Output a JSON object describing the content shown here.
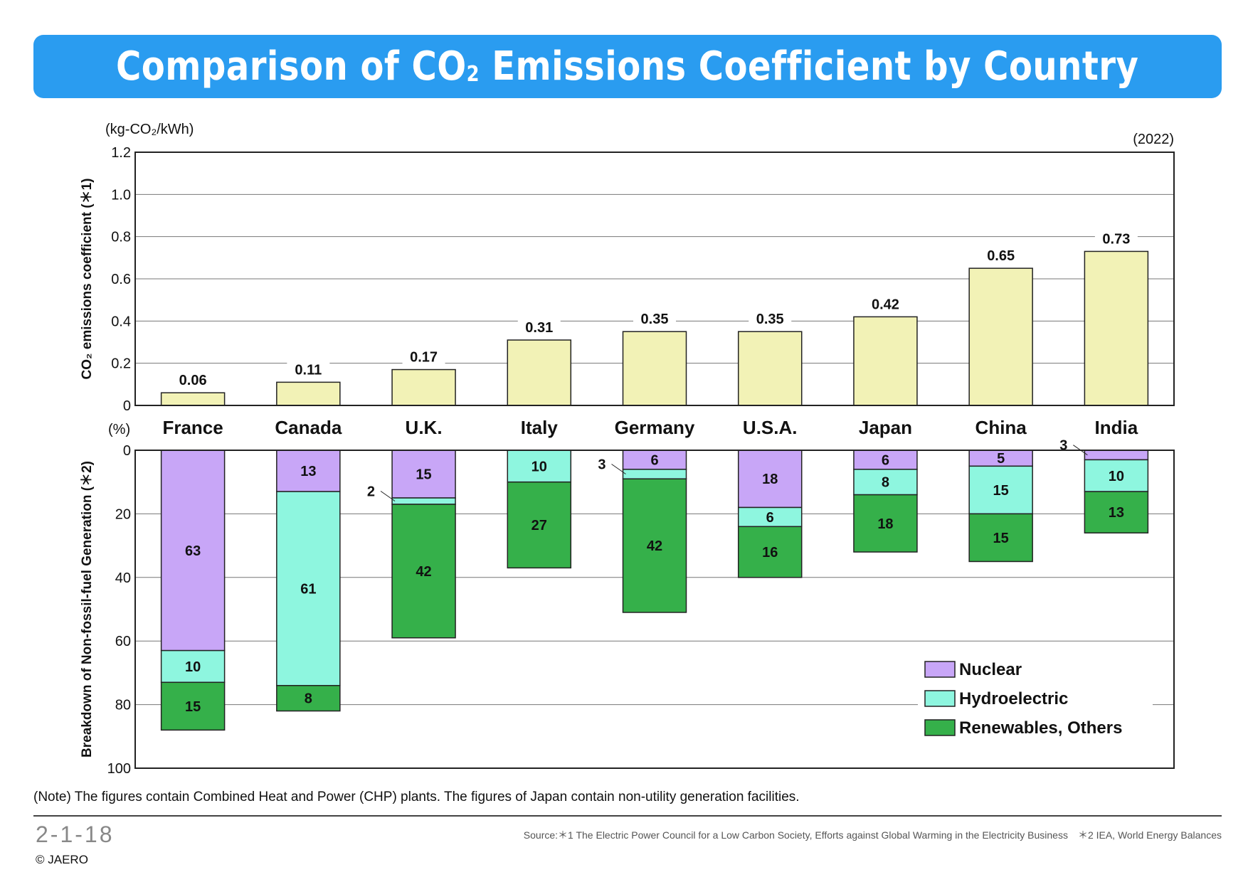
{
  "header": {
    "title_pre": "Comparison of CO",
    "title_sub": "2",
    "title_post": " Emissions Coefficient by Country"
  },
  "chart_data": [
    {
      "type": "bar",
      "ylabel": "CO₂ emissions coefficient (＊1)",
      "unit": "(kg-CO₂/kWh)",
      "year": "(2022)",
      "categories": [
        "France",
        "Canada",
        "U.K.",
        "Italy",
        "Germany",
        "U.S.A.",
        "Japan",
        "China",
        "India"
      ],
      "values": [
        0.06,
        0.11,
        0.17,
        0.31,
        0.35,
        0.35,
        0.42,
        0.65,
        0.73
      ],
      "value_labels": [
        "0.06",
        "0.11",
        "0.17",
        "0.31",
        "0.35",
        "0.35",
        "0.42",
        "0.65",
        "0.73"
      ],
      "ylim": [
        0,
        1.2
      ],
      "yticks": [
        "0",
        "0.2",
        "0.4",
        "0.6",
        "0.8",
        "1.0",
        "1.2"
      ],
      "grid": true,
      "color": "#f2f2b6"
    },
    {
      "type": "bar",
      "stacked": true,
      "inverted_axis": true,
      "ylabel": "Breakdown of Non-fossil-fuel Generation (＊2)",
      "unit": "(%)",
      "categories": [
        "France",
        "Canada",
        "U.K.",
        "Italy",
        "Germany",
        "U.S.A.",
        "Japan",
        "China",
        "India"
      ],
      "series": [
        {
          "name": "Nuclear",
          "color": "#c8a6f7",
          "values": [
            63,
            13,
            15,
            0,
            6,
            18,
            6,
            5,
            3
          ]
        },
        {
          "name": "Hydroelectric",
          "color": "#8ef6df",
          "values": [
            10,
            61,
            2,
            10,
            3,
            6,
            8,
            15,
            10
          ]
        },
        {
          "name": "Renewables, Others",
          "color": "#35b04a",
          "values": [
            15,
            8,
            42,
            27,
            42,
            16,
            18,
            15,
            13
          ]
        }
      ],
      "ylim": [
        0,
        100
      ],
      "yticks": [
        "0",
        "20",
        "40",
        "60",
        "80",
        "100"
      ],
      "grid": true,
      "legend": "bottom-right"
    }
  ],
  "footer": {
    "note": "(Note) The figures contain Combined Heat and Power (CHP) plants. The figures of Japan contain non-utility generation facilities.",
    "page_number": "2-1-18",
    "copyright": "© JAERO",
    "source": "Source:＊1 The Electric Power Council for a Low Carbon Society, Efforts against Global Warming in the Electricity Business　＊2 IEA, World Energy Balances"
  }
}
